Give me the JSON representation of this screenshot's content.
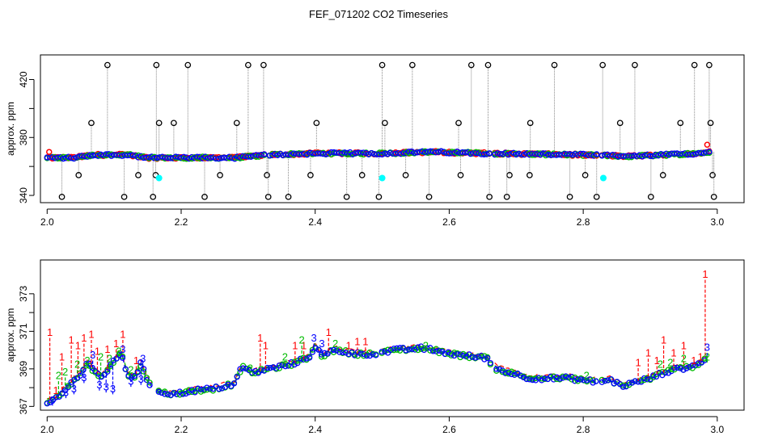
{
  "title": "FEF_071202  CO2 Timeseries",
  "colors": {
    "series1": "#ff0000",
    "series2": "#00bb00",
    "series3": "#0000ff",
    "spike": "#000000",
    "cyan": "#00ffff",
    "axis": "#000000",
    "vline": "#888888"
  },
  "chart_data": [
    {
      "type": "scatter",
      "ylabel": "approx. ppm",
      "xlim": [
        1.99,
        3.04
      ],
      "ylim": [
        335,
        437
      ],
      "xticks": [
        "2.0",
        "2.2",
        "2.4",
        "2.6",
        "2.8",
        "3.0"
      ],
      "xtick_values": [
        2.0,
        2.2,
        2.4,
        2.6,
        2.8,
        3.0
      ],
      "yticks": [
        "340",
        "380",
        "420"
      ],
      "ytick_values": [
        340,
        380,
        420
      ],
      "minor_yticks": [
        360,
        400
      ],
      "baseline": [
        {
          "x": 2.0,
          "y": 366
        },
        {
          "x": 2.04,
          "y": 366
        },
        {
          "x": 2.07,
          "y": 368
        },
        {
          "x": 2.12,
          "y": 368
        },
        {
          "x": 2.15,
          "y": 366
        },
        {
          "x": 2.17,
          "y": 366
        },
        {
          "x": 2.28,
          "y": 366
        },
        {
          "x": 2.33,
          "y": 368
        },
        {
          "x": 2.4,
          "y": 369
        },
        {
          "x": 2.5,
          "y": 369
        },
        {
          "x": 2.57,
          "y": 370
        },
        {
          "x": 2.66,
          "y": 369
        },
        {
          "x": 2.8,
          "y": 368
        },
        {
          "x": 2.87,
          "y": 367
        },
        {
          "x": 2.97,
          "y": 369
        },
        {
          "x": 2.99,
          "y": 370
        }
      ],
      "gaps": [
        2.33,
        2.665,
        2.825
      ],
      "spikes_high": [
        2.09,
        2.163,
        2.21,
        2.3,
        2.323,
        2.5,
        2.545,
        2.633,
        2.658,
        2.757,
        2.829,
        2.877,
        2.966,
        2.988
      ],
      "spikes_mid": [
        2.066,
        2.167,
        2.189,
        2.283,
        2.402,
        2.504,
        2.614,
        2.721,
        2.855,
        2.945,
        2.99
      ],
      "spikes_low1": [
        2.047,
        2.136,
        2.162,
        2.258,
        2.328,
        2.393,
        2.47,
        2.535,
        2.617,
        2.69,
        2.72,
        2.803,
        2.919,
        2.993
      ],
      "spikes_low2": [
        2.022,
        2.115,
        2.158,
        2.235,
        2.33,
        2.36,
        2.447,
        2.495,
        2.57,
        2.66,
        2.686,
        2.78,
        2.82,
        2.901,
        2.995
      ],
      "cyan_points": [
        {
          "x": 2.167,
          "y": 352
        },
        {
          "x": 2.5,
          "y": 352
        },
        {
          "x": 2.83,
          "y": 352
        }
      ],
      "red_high_points": [
        {
          "x": 2.003,
          "y": 370
        },
        {
          "x": 2.985,
          "y": 375
        }
      ]
    },
    {
      "type": "line",
      "ylabel": "approx. ppm",
      "xlim": [
        1.99,
        3.04
      ],
      "ylim": [
        366.8,
        374.8
      ],
      "xticks": [
        "2.0",
        "2.2",
        "2.4",
        "2.6",
        "2.8",
        "3.0"
      ],
      "xtick_values": [
        2.0,
        2.2,
        2.4,
        2.6,
        2.8,
        3.0
      ],
      "yticks": [
        "367",
        "369",
        "371",
        "373"
      ],
      "ytick_values": [
        367,
        369,
        371,
        373
      ],
      "minor_yticks": [
        368,
        370,
        372
      ],
      "baseline": [
        {
          "x": 2.0,
          "y": 367.2
        },
        {
          "x": 2.01,
          "y": 367.3
        },
        {
          "x": 2.02,
          "y": 367.7
        },
        {
          "x": 2.03,
          "y": 368.0
        },
        {
          "x": 2.04,
          "y": 368.4
        },
        {
          "x": 2.05,
          "y": 368.7
        },
        {
          "x": 2.06,
          "y": 369.3
        },
        {
          "x": 2.07,
          "y": 368.9
        },
        {
          "x": 2.08,
          "y": 368.6
        },
        {
          "x": 2.09,
          "y": 368.9
        },
        {
          "x": 2.1,
          "y": 369.4
        },
        {
          "x": 2.11,
          "y": 369.9
        },
        {
          "x": 2.12,
          "y": 368.7
        },
        {
          "x": 2.13,
          "y": 368.5
        },
        {
          "x": 2.14,
          "y": 369.3
        },
        {
          "x": 2.15,
          "y": 368.3
        },
        {
          "x": 2.165,
          "y": 367.8
        },
        {
          "x": 2.19,
          "y": 367.65
        },
        {
          "x": 2.22,
          "y": 367.85
        },
        {
          "x": 2.25,
          "y": 367.95
        },
        {
          "x": 2.28,
          "y": 368.2
        },
        {
          "x": 2.29,
          "y": 369.1
        },
        {
          "x": 2.3,
          "y": 368.9
        },
        {
          "x": 2.31,
          "y": 368.8
        },
        {
          "x": 2.33,
          "y": 369.0
        },
        {
          "x": 2.36,
          "y": 369.2
        },
        {
          "x": 2.39,
          "y": 369.6
        },
        {
          "x": 2.4,
          "y": 370.2
        },
        {
          "x": 2.41,
          "y": 369.7
        },
        {
          "x": 2.43,
          "y": 370.0
        },
        {
          "x": 2.46,
          "y": 369.8
        },
        {
          "x": 2.49,
          "y": 369.8
        },
        {
          "x": 2.52,
          "y": 370.0
        },
        {
          "x": 2.56,
          "y": 370.1
        },
        {
          "x": 2.59,
          "y": 369.9
        },
        {
          "x": 2.62,
          "y": 369.7
        },
        {
          "x": 2.655,
          "y": 369.6
        },
        {
          "x": 2.67,
          "y": 369.0
        },
        {
          "x": 2.69,
          "y": 368.8
        },
        {
          "x": 2.72,
          "y": 368.5
        },
        {
          "x": 2.75,
          "y": 368.5
        },
        {
          "x": 2.78,
          "y": 368.5
        },
        {
          "x": 2.82,
          "y": 368.3
        },
        {
          "x": 2.84,
          "y": 368.4
        },
        {
          "x": 2.86,
          "y": 368.1
        },
        {
          "x": 2.88,
          "y": 368.3
        },
        {
          "x": 2.9,
          "y": 368.5
        },
        {
          "x": 2.92,
          "y": 368.8
        },
        {
          "x": 2.94,
          "y": 369.0
        },
        {
          "x": 2.96,
          "y": 369.1
        },
        {
          "x": 2.975,
          "y": 369.3
        },
        {
          "x": 2.985,
          "y": 369.7
        }
      ],
      "gaps": [
        2.16,
        2.495,
        2.665,
        2.825
      ],
      "series1_labels": [
        {
          "x": 2.004,
          "y": 370.9
        },
        {
          "x": 2.013,
          "y": 367.8
        },
        {
          "x": 2.022,
          "y": 369.6
        },
        {
          "x": 2.036,
          "y": 370.5
        },
        {
          "x": 2.046,
          "y": 370.2
        },
        {
          "x": 2.055,
          "y": 370.6
        },
        {
          "x": 2.066,
          "y": 370.8
        },
        {
          "x": 2.075,
          "y": 369.9
        },
        {
          "x": 2.09,
          "y": 370.0
        },
        {
          "x": 2.103,
          "y": 370.3
        },
        {
          "x": 2.113,
          "y": 370.8
        },
        {
          "x": 2.133,
          "y": 369.4
        },
        {
          "x": 2.318,
          "y": 370.6
        },
        {
          "x": 2.326,
          "y": 370.2
        },
        {
          "x": 2.37,
          "y": 370.2
        },
        {
          "x": 2.383,
          "y": 370.2
        },
        {
          "x": 2.42,
          "y": 370.9
        },
        {
          "x": 2.45,
          "y": 370.2
        },
        {
          "x": 2.463,
          "y": 370.4
        },
        {
          "x": 2.475,
          "y": 370.4
        },
        {
          "x": 2.882,
          "y": 369.3
        },
        {
          "x": 2.897,
          "y": 369.8
        },
        {
          "x": 2.91,
          "y": 369.4
        },
        {
          "x": 2.92,
          "y": 370.5
        },
        {
          "x": 2.935,
          "y": 369.8
        },
        {
          "x": 2.95,
          "y": 370.2
        },
        {
          "x": 2.965,
          "y": 369.4
        },
        {
          "x": 2.975,
          "y": 369.6
        },
        {
          "x": 2.982,
          "y": 374.0
        }
      ],
      "series2_labels": [
        {
          "x": 2.017,
          "y": 368.6
        },
        {
          "x": 2.027,
          "y": 368.8
        },
        {
          "x": 2.045,
          "y": 369.2
        },
        {
          "x": 2.06,
          "y": 369.4
        },
        {
          "x": 2.08,
          "y": 369.6
        },
        {
          "x": 2.093,
          "y": 369.5
        },
        {
          "x": 2.107,
          "y": 369.9
        },
        {
          "x": 2.125,
          "y": 368.9
        },
        {
          "x": 2.303,
          "y": 369.0
        },
        {
          "x": 2.355,
          "y": 369.6
        },
        {
          "x": 2.38,
          "y": 370.5
        },
        {
          "x": 2.43,
          "y": 370.3
        },
        {
          "x": 2.565,
          "y": 370.2
        },
        {
          "x": 2.805,
          "y": 368.6
        },
        {
          "x": 2.915,
          "y": 369.2
        },
        {
          "x": 2.93,
          "y": 369.3
        },
        {
          "x": 2.95,
          "y": 369.5
        },
        {
          "x": 2.985,
          "y": 369.6
        }
      ],
      "series3_labels": [
        {
          "x": 2.008,
          "y": 367.3
        },
        {
          "x": 2.028,
          "y": 367.7
        },
        {
          "x": 2.04,
          "y": 367.9
        },
        {
          "x": 2.055,
          "y": 368.5
        },
        {
          "x": 2.068,
          "y": 369.7
        },
        {
          "x": 2.078,
          "y": 368.1
        },
        {
          "x": 2.088,
          "y": 368.0
        },
        {
          "x": 2.098,
          "y": 367.9
        },
        {
          "x": 2.113,
          "y": 370.0
        },
        {
          "x": 2.125,
          "y": 368.3
        },
        {
          "x": 2.14,
          "y": 368.4
        },
        {
          "x": 2.143,
          "y": 369.5
        },
        {
          "x": 2.398,
          "y": 370.6
        },
        {
          "x": 2.41,
          "y": 370.3
        },
        {
          "x": 2.985,
          "y": 370.1
        }
      ]
    }
  ]
}
